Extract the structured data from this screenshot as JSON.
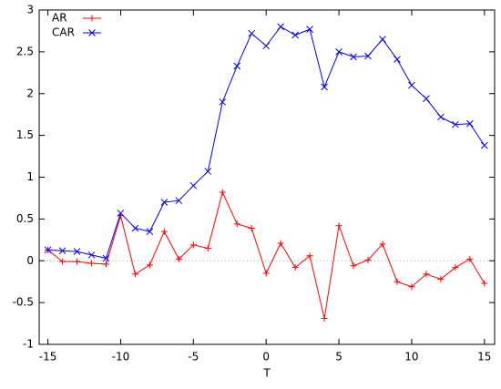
{
  "chart_data": {
    "type": "line",
    "xlabel": "T",
    "x": [
      -15,
      -14,
      -13,
      -12,
      -11,
      -10,
      -9,
      -8,
      -7,
      -6,
      -5,
      -4,
      -3,
      -2,
      -1,
      0,
      1,
      2,
      3,
      4,
      5,
      6,
      7,
      8,
      9,
      10,
      11,
      12,
      13,
      14,
      15
    ],
    "series": [
      {
        "name": "AR",
        "color": "#ff0000",
        "marker": "plus",
        "values": [
          0.13,
          -0.01,
          -0.01,
          -0.03,
          -0.04,
          0.54,
          -0.16,
          -0.05,
          0.35,
          0.02,
          0.19,
          0.15,
          0.82,
          0.44,
          0.39,
          -0.15,
          0.21,
          -0.08,
          0.06,
          -0.69,
          0.42,
          -0.06,
          0.01,
          0.2,
          -0.25,
          -0.31,
          -0.16,
          -0.22,
          -0.08,
          0.02,
          -0.27
        ]
      },
      {
        "name": "CAR",
        "color": "#0000ff",
        "marker": "cross",
        "values": [
          0.13,
          0.12,
          0.11,
          0.07,
          0.03,
          0.57,
          0.39,
          0.35,
          0.7,
          0.72,
          0.9,
          1.07,
          1.9,
          2.33,
          2.72,
          2.57,
          2.8,
          2.7,
          2.77,
          2.08,
          2.5,
          2.44,
          2.45,
          2.65,
          2.41,
          2.1,
          1.94,
          1.72,
          1.63,
          1.64,
          1.38
        ]
      }
    ],
    "xlim": [
      -15.6,
      15.7
    ],
    "ylim": [
      -1,
      3
    ],
    "xticks": [
      -15,
      -10,
      -5,
      0,
      5,
      10,
      15
    ],
    "yticks": [
      -1,
      -0.5,
      0,
      0.5,
      1,
      1.5,
      2,
      2.5,
      3
    ],
    "legend": "top-left"
  }
}
